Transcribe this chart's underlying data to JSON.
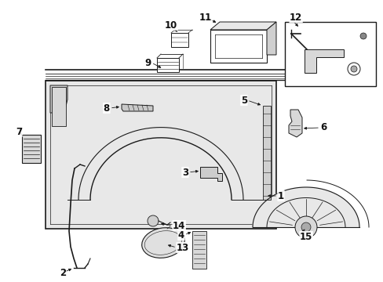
{
  "bg_color": "#ffffff",
  "line_color": "#1a1a1a",
  "panel_fill": "#e8e8e8",
  "white": "#ffffff",
  "fig_w": 4.89,
  "fig_h": 3.6,
  "dpi": 100
}
